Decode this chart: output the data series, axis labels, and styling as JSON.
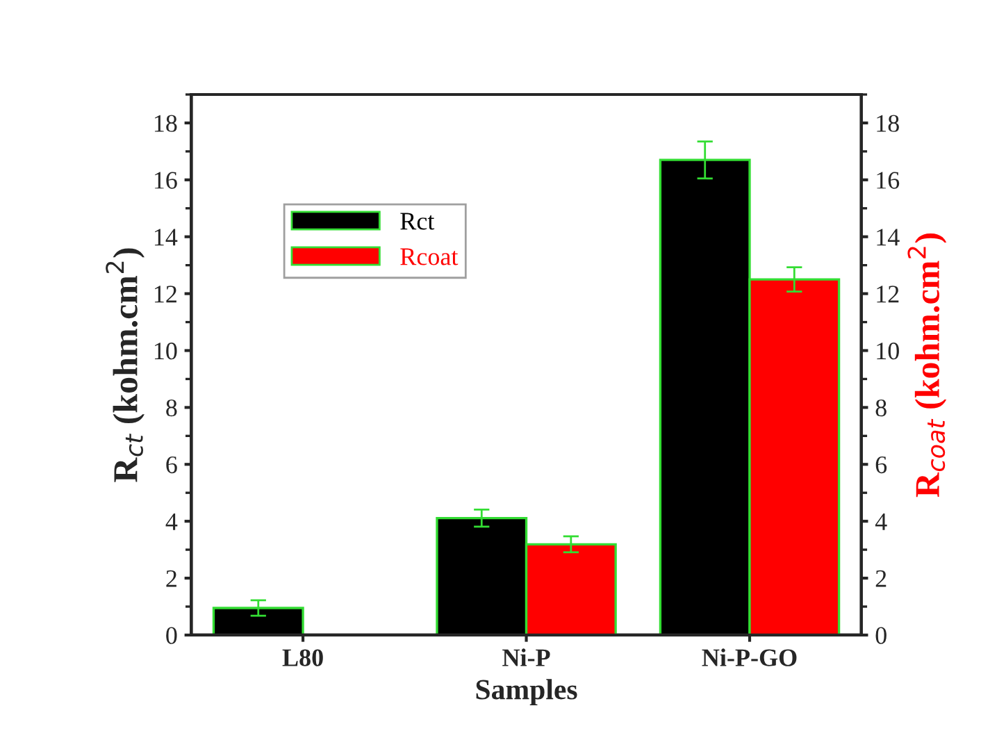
{
  "chart_data": {
    "type": "bar",
    "xlabel": "Samples",
    "ylabel": "R$_{ct}$ (kohm.cm$^{2}$)",
    "y2label": "R$_{coat}$ (kohm.cm$^{2}$)",
    "categories": [
      "L80",
      "Ni-P",
      "Ni-P-GO"
    ],
    "series": [
      {
        "name": "Rct",
        "color": "#000000",
        "values": [
          0.95,
          4.11,
          16.7
        ],
        "errors": [
          0.27,
          0.3,
          0.65
        ]
      },
      {
        "name": "Rcoat",
        "color": "#ff0000",
        "values": [
          null,
          3.19,
          12.5
        ],
        "errors": [
          null,
          0.28,
          0.43
        ],
        "axis": "y2"
      }
    ],
    "ylim": [
      0,
      19
    ],
    "yticks": [
      0,
      2,
      4,
      6,
      8,
      10,
      12,
      14,
      16,
      18
    ],
    "y2lim": [
      0,
      19
    ],
    "y2ticks": [
      0,
      2,
      4,
      6,
      8,
      10,
      12,
      14,
      16,
      18
    ],
    "legend": "top left",
    "grid": false
  }
}
